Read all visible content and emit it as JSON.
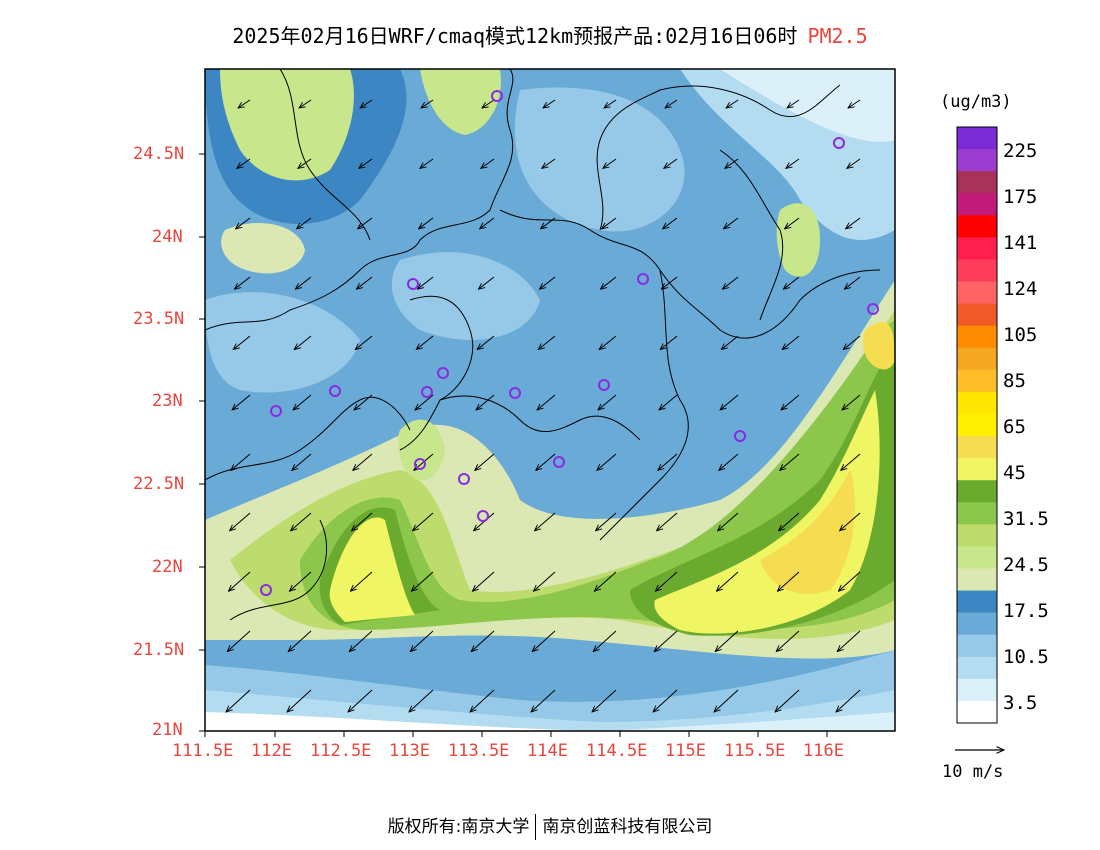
{
  "title": {
    "main": "2025年02月16日WRF/cmaq模式12km预报产品:02月16日06时",
    "pollutant": "PM2.5"
  },
  "axes": {
    "y_ticks": [
      "24.5N",
      "24N",
      "23.5N",
      "23N",
      "22.5N",
      "22N",
      "21.5N",
      "21N"
    ],
    "x_ticks": [
      "111.5E",
      "112E",
      "112.5E",
      "113E",
      "113.5E",
      "114E",
      "114.5E",
      "115E",
      "115.5E",
      "116E"
    ]
  },
  "colorbar": {
    "unit": "(ug/m3)",
    "labels": [
      "225",
      "175",
      "141",
      "124",
      "105",
      "85",
      "65",
      "45",
      "31.5",
      "24.5",
      "17.5",
      "10.5",
      "3.5"
    ],
    "colors": [
      "#7a2bd6",
      "#9a3dd0",
      "#a8325a",
      "#c21a7a",
      "#ff0000",
      "#ff1e50",
      "#ff3c5a",
      "#ff6464",
      "#f05a28",
      "#ff8c00",
      "#f5a623",
      "#ffbe28",
      "#ffe600",
      "#fff000",
      "#f5dc50",
      "#f0f564",
      "#6aaa2f",
      "#8cc64b",
      "#bedc6e",
      "#c8e68c",
      "#dce8b4",
      "#3c87c3",
      "#6aaad6",
      "#96c8e8",
      "#b4dcf0",
      "#dcf0fa",
      "#ffffff"
    ]
  },
  "vector_reference": {
    "label": "10 m/s"
  },
  "stations": {
    "color": "#8a2be2"
  },
  "copyright": {
    "left": "版权所有:南京大学",
    "right": "南京创蓝科技有限公司"
  }
}
